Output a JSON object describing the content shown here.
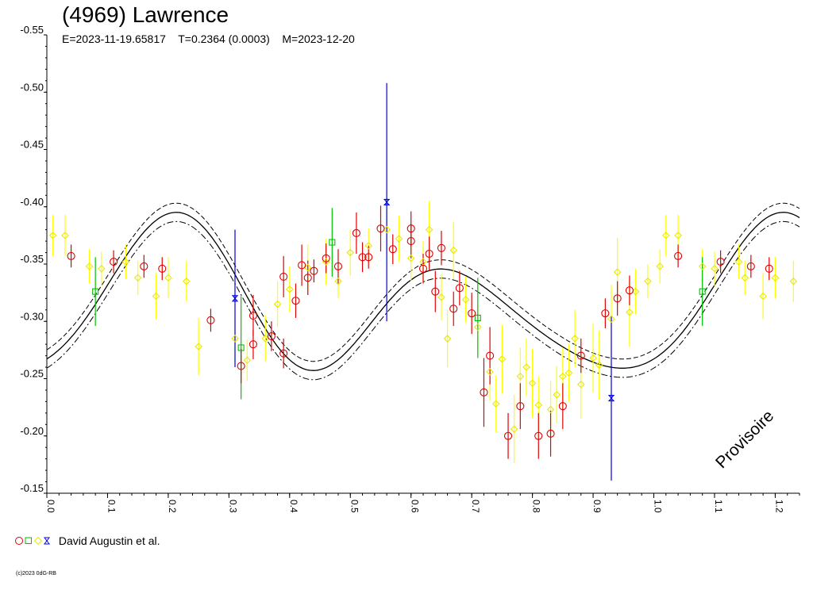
{
  "title": "(4969) Lawrence",
  "subtitle": {
    "epoch": "E=2023-11-19.65817",
    "period": "T=0.2364 (0.0003)",
    "date": "M=2023-12-20"
  },
  "legend": {
    "symbols": [
      "circle-red",
      "square-green",
      "diamond-yellow",
      "hourglass-blue"
    ],
    "label": "David Augustin et al."
  },
  "watermark": "Provisoire",
  "copyright": "(c)2023 0dG-RB",
  "colors": {
    "red": "#e00000",
    "green": "#00c000",
    "yellow": "#ffff00",
    "blue": "#0000e0",
    "curve": "#000000"
  },
  "chart_data": {
    "type": "scatter",
    "xlabel": "",
    "ylabel": "",
    "xlim": [
      0.0,
      1.24
    ],
    "ylim": [
      -0.55,
      -0.15
    ],
    "y_inverted": true,
    "x_ticks": [
      "0.0",
      "0.1",
      "0.2",
      "0.3",
      "0.4",
      "0.5",
      "0.6",
      "0.7",
      "0.8",
      "0.9",
      "1.0",
      "1.1",
      "1.2"
    ],
    "y_ticks": [
      "-0.55",
      "-0.50",
      "-0.45",
      "-0.40",
      "-0.35",
      "-0.30",
      "-0.25",
      "-0.20",
      "-0.15"
    ],
    "grid": false,
    "series": [
      {
        "marker": "circle",
        "color": "red",
        "points": [
          [
            0.04,
            -0.357,
            0.01
          ],
          [
            0.11,
            -0.352,
            0.01
          ],
          [
            0.16,
            -0.348,
            0.01
          ],
          [
            0.19,
            -0.346,
            0.01
          ],
          [
            0.27,
            -0.301,
            0.01
          ],
          [
            0.32,
            -0.261,
            0.015
          ],
          [
            0.34,
            -0.28,
            0.013
          ],
          [
            0.34,
            -0.305,
            0.018
          ],
          [
            0.37,
            -0.287,
            0.013
          ],
          [
            0.39,
            -0.339,
            0.018
          ],
          [
            0.39,
            -0.272,
            0.013
          ],
          [
            0.41,
            -0.318,
            0.015
          ],
          [
            0.42,
            -0.349,
            0.018
          ],
          [
            0.43,
            -0.338,
            0.015
          ],
          [
            0.44,
            -0.344,
            0.01
          ],
          [
            0.46,
            -0.355,
            0.013
          ],
          [
            0.48,
            -0.348,
            0.015
          ],
          [
            0.51,
            -0.377,
            0.018
          ],
          [
            0.52,
            -0.356,
            0.013
          ],
          [
            0.53,
            -0.356,
            0.01
          ],
          [
            0.55,
            -0.381,
            0.02
          ],
          [
            0.57,
            -0.363,
            0.013
          ],
          [
            0.6,
            -0.381,
            0.015
          ],
          [
            0.6,
            -0.37,
            0.015
          ],
          [
            0.62,
            -0.346,
            0.013
          ],
          [
            0.63,
            -0.359,
            0.015
          ],
          [
            0.64,
            -0.326,
            0.018
          ],
          [
            0.65,
            -0.364,
            0.015
          ],
          [
            0.67,
            -0.311,
            0.015
          ],
          [
            0.68,
            -0.329,
            0.015
          ],
          [
            0.7,
            -0.307,
            0.018
          ],
          [
            0.72,
            -0.238,
            0.03
          ],
          [
            0.73,
            -0.27,
            0.025
          ],
          [
            0.76,
            -0.2,
            0.02
          ],
          [
            0.78,
            -0.226,
            0.02
          ],
          [
            0.81,
            -0.2,
            0.02
          ],
          [
            0.83,
            -0.202,
            0.02
          ],
          [
            0.85,
            -0.226,
            0.02
          ],
          [
            0.88,
            -0.27,
            0.015
          ],
          [
            0.92,
            -0.307,
            0.013
          ],
          [
            0.94,
            -0.32,
            0.015
          ],
          [
            0.96,
            -0.327,
            0.013
          ],
          [
            1.04,
            -0.357,
            0.01
          ],
          [
            1.11,
            -0.352,
            0.01
          ],
          [
            1.16,
            -0.348,
            0.01
          ],
          [
            1.19,
            -0.346,
            0.01
          ]
        ]
      },
      {
        "marker": "square",
        "color": "green",
        "points": [
          [
            0.08,
            -0.326,
            0.03
          ],
          [
            0.32,
            -0.277,
            0.045
          ],
          [
            0.47,
            -0.369,
            0.03
          ],
          [
            0.71,
            -0.303,
            0.035
          ],
          [
            1.08,
            -0.326,
            0.03
          ]
        ]
      },
      {
        "marker": "diamond",
        "color": "yellow",
        "points": [
          [
            0.01,
            -0.375,
            0.018
          ],
          [
            0.03,
            -0.375,
            0.018
          ],
          [
            0.07,
            -0.348,
            0.015
          ],
          [
            0.09,
            -0.346,
            0.015
          ],
          [
            0.13,
            -0.352,
            0.015
          ],
          [
            0.15,
            -0.338,
            0.015
          ],
          [
            0.18,
            -0.322,
            0.02
          ],
          [
            0.2,
            -0.338,
            0.018
          ],
          [
            0.23,
            -0.335,
            0.018
          ],
          [
            0.25,
            -0.278,
            0.025
          ],
          [
            0.31,
            -0.285,
            0.02
          ],
          [
            0.33,
            -0.266,
            0.018
          ],
          [
            0.36,
            -0.285,
            0.02
          ],
          [
            0.38,
            -0.315,
            0.02
          ],
          [
            0.4,
            -0.328,
            0.02
          ],
          [
            0.43,
            -0.347,
            0.02
          ],
          [
            0.46,
            -0.352,
            0.02
          ],
          [
            0.48,
            -0.335,
            0.015
          ],
          [
            0.5,
            -0.36,
            0.02
          ],
          [
            0.53,
            -0.366,
            0.015
          ],
          [
            0.56,
            -0.38,
            0.018
          ],
          [
            0.58,
            -0.372,
            0.02
          ],
          [
            0.6,
            -0.355,
            0.02
          ],
          [
            0.62,
            -0.352,
            0.018
          ],
          [
            0.63,
            -0.38,
            0.025
          ],
          [
            0.65,
            -0.321,
            0.02
          ],
          [
            0.66,
            -0.285,
            0.025
          ],
          [
            0.67,
            -0.362,
            0.025
          ],
          [
            0.69,
            -0.319,
            0.02
          ],
          [
            0.71,
            -0.295,
            0.02
          ],
          [
            0.73,
            -0.256,
            0.025
          ],
          [
            0.74,
            -0.228,
            0.025
          ],
          [
            0.75,
            -0.267,
            0.03
          ],
          [
            0.77,
            -0.206,
            0.03
          ],
          [
            0.78,
            -0.252,
            0.025
          ],
          [
            0.79,
            -0.26,
            0.025
          ],
          [
            0.8,
            -0.246,
            0.03
          ],
          [
            0.81,
            -0.227,
            0.025
          ],
          [
            0.83,
            -0.223,
            0.025
          ],
          [
            0.84,
            -0.236,
            0.025
          ],
          [
            0.85,
            -0.252,
            0.025
          ],
          [
            0.86,
            -0.255,
            0.025
          ],
          [
            0.87,
            -0.285,
            0.025
          ],
          [
            0.88,
            -0.245,
            0.03
          ],
          [
            0.9,
            -0.268,
            0.03
          ],
          [
            0.91,
            -0.262,
            0.03
          ],
          [
            0.93,
            -0.302,
            0.03
          ],
          [
            0.94,
            -0.343,
            0.03
          ],
          [
            0.96,
            -0.308,
            0.03
          ],
          [
            0.97,
            -0.326,
            0.02
          ],
          [
            0.99,
            -0.335,
            0.015
          ],
          [
            1.01,
            -0.348,
            0.015
          ],
          [
            1.02,
            -0.375,
            0.018
          ],
          [
            1.04,
            -0.375,
            0.018
          ],
          [
            1.08,
            -0.348,
            0.015
          ],
          [
            1.1,
            -0.346,
            0.015
          ],
          [
            1.14,
            -0.352,
            0.015
          ],
          [
            1.15,
            -0.338,
            0.015
          ],
          [
            1.18,
            -0.322,
            0.02
          ],
          [
            1.2,
            -0.338,
            0.018
          ],
          [
            1.23,
            -0.335,
            0.018
          ]
        ]
      },
      {
        "marker": "hourglass",
        "color": "blue",
        "points": [
          [
            0.31,
            -0.32,
            0.06
          ],
          [
            0.56,
            -0.404,
            0.104
          ],
          [
            0.93,
            -0.233,
            0.072
          ]
        ]
      }
    ],
    "fit_curve": {
      "mean": -0.312,
      "terms": [
        {
          "k": 1,
          "a": 0.0028,
          "b": -0.0208
        },
        {
          "k": 2,
          "a": 0.04,
          "b": -0.036
        },
        {
          "k": 3,
          "a": 0.002,
          "b": 0.0135
        }
      ],
      "band": 0.008
    }
  }
}
